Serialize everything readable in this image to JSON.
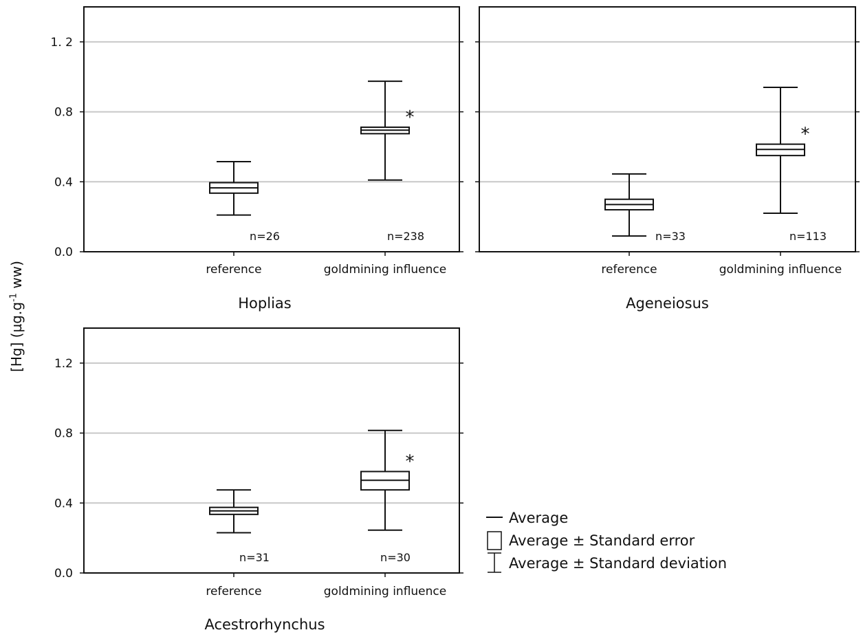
{
  "y_axis_label": {
    "before": "[Hg] (µg.g",
    "sup": "-1",
    "after": " ww)"
  },
  "legend": [
    {
      "symbol": "mean-line",
      "label": "Average"
    },
    {
      "symbol": "se-box",
      "label": "Average ± Standard error"
    },
    {
      "symbol": "sd-whisker",
      "label": "Average ± Standard deviation"
    }
  ],
  "colors": {
    "grid": "#c8c8c8",
    "ink": "#111111",
    "background": "#ffffff"
  },
  "chart_data": [
    {
      "type": "box",
      "title": "Hoplias",
      "categories": [
        "reference",
        "goldmining influence"
      ],
      "ylim": [
        0,
        1.4
      ],
      "yticks": [
        0.0,
        0.4,
        0.8,
        1.2
      ],
      "ytick_labels": [
        "0.0",
        "0.4",
        "0.8",
        "1. 2"
      ],
      "grid": true,
      "series": [
        {
          "category": "reference",
          "mean": 0.365,
          "se_low": 0.335,
          "se_high": 0.395,
          "sd_low": 0.21,
          "sd_high": 0.515,
          "n_label": "n=26",
          "significant": false
        },
        {
          "category": "goldmining influence",
          "mean": 0.695,
          "se_low": 0.675,
          "se_high": 0.712,
          "sd_low": 0.41,
          "sd_high": 0.975,
          "n_label": "n=238",
          "significant": true
        }
      ],
      "significance_marker": "*"
    },
    {
      "type": "box",
      "title": "Ageneiosus",
      "categories": [
        "reference",
        "goldmining influence"
      ],
      "ylim": [
        0,
        1.4
      ],
      "yticks": [
        0.0,
        0.4,
        0.8,
        1.2
      ],
      "ytick_labels": [
        "",
        "",
        "",
        ""
      ],
      "grid": true,
      "series": [
        {
          "category": "reference",
          "mean": 0.27,
          "se_low": 0.24,
          "se_high": 0.3,
          "sd_low": 0.09,
          "sd_high": 0.445,
          "n_label": "n=33",
          "significant": false
        },
        {
          "category": "goldmining influence",
          "mean": 0.585,
          "se_low": 0.55,
          "se_high": 0.615,
          "sd_low": 0.22,
          "sd_high": 0.94,
          "n_label": "n=113",
          "significant": true
        }
      ],
      "significance_marker": "*"
    },
    {
      "type": "box",
      "title": "Acestrorhynchus",
      "categories": [
        "reference",
        "goldmining influence"
      ],
      "ylim": [
        0,
        1.4
      ],
      "yticks": [
        0.0,
        0.4,
        0.8,
        1.2
      ],
      "ytick_labels": [
        "0.0",
        "0.4",
        "0.8",
        "1.2"
      ],
      "grid": true,
      "series": [
        {
          "category": "reference",
          "mean": 0.355,
          "se_low": 0.335,
          "se_high": 0.375,
          "sd_low": 0.23,
          "sd_high": 0.475,
          "n_label": "n=31",
          "significant": false
        },
        {
          "category": "goldmining influence",
          "mean": 0.53,
          "se_low": 0.475,
          "se_high": 0.58,
          "sd_low": 0.245,
          "sd_high": 0.815,
          "n_label": "n=30",
          "significant": true
        }
      ],
      "significance_marker": "*"
    }
  ]
}
